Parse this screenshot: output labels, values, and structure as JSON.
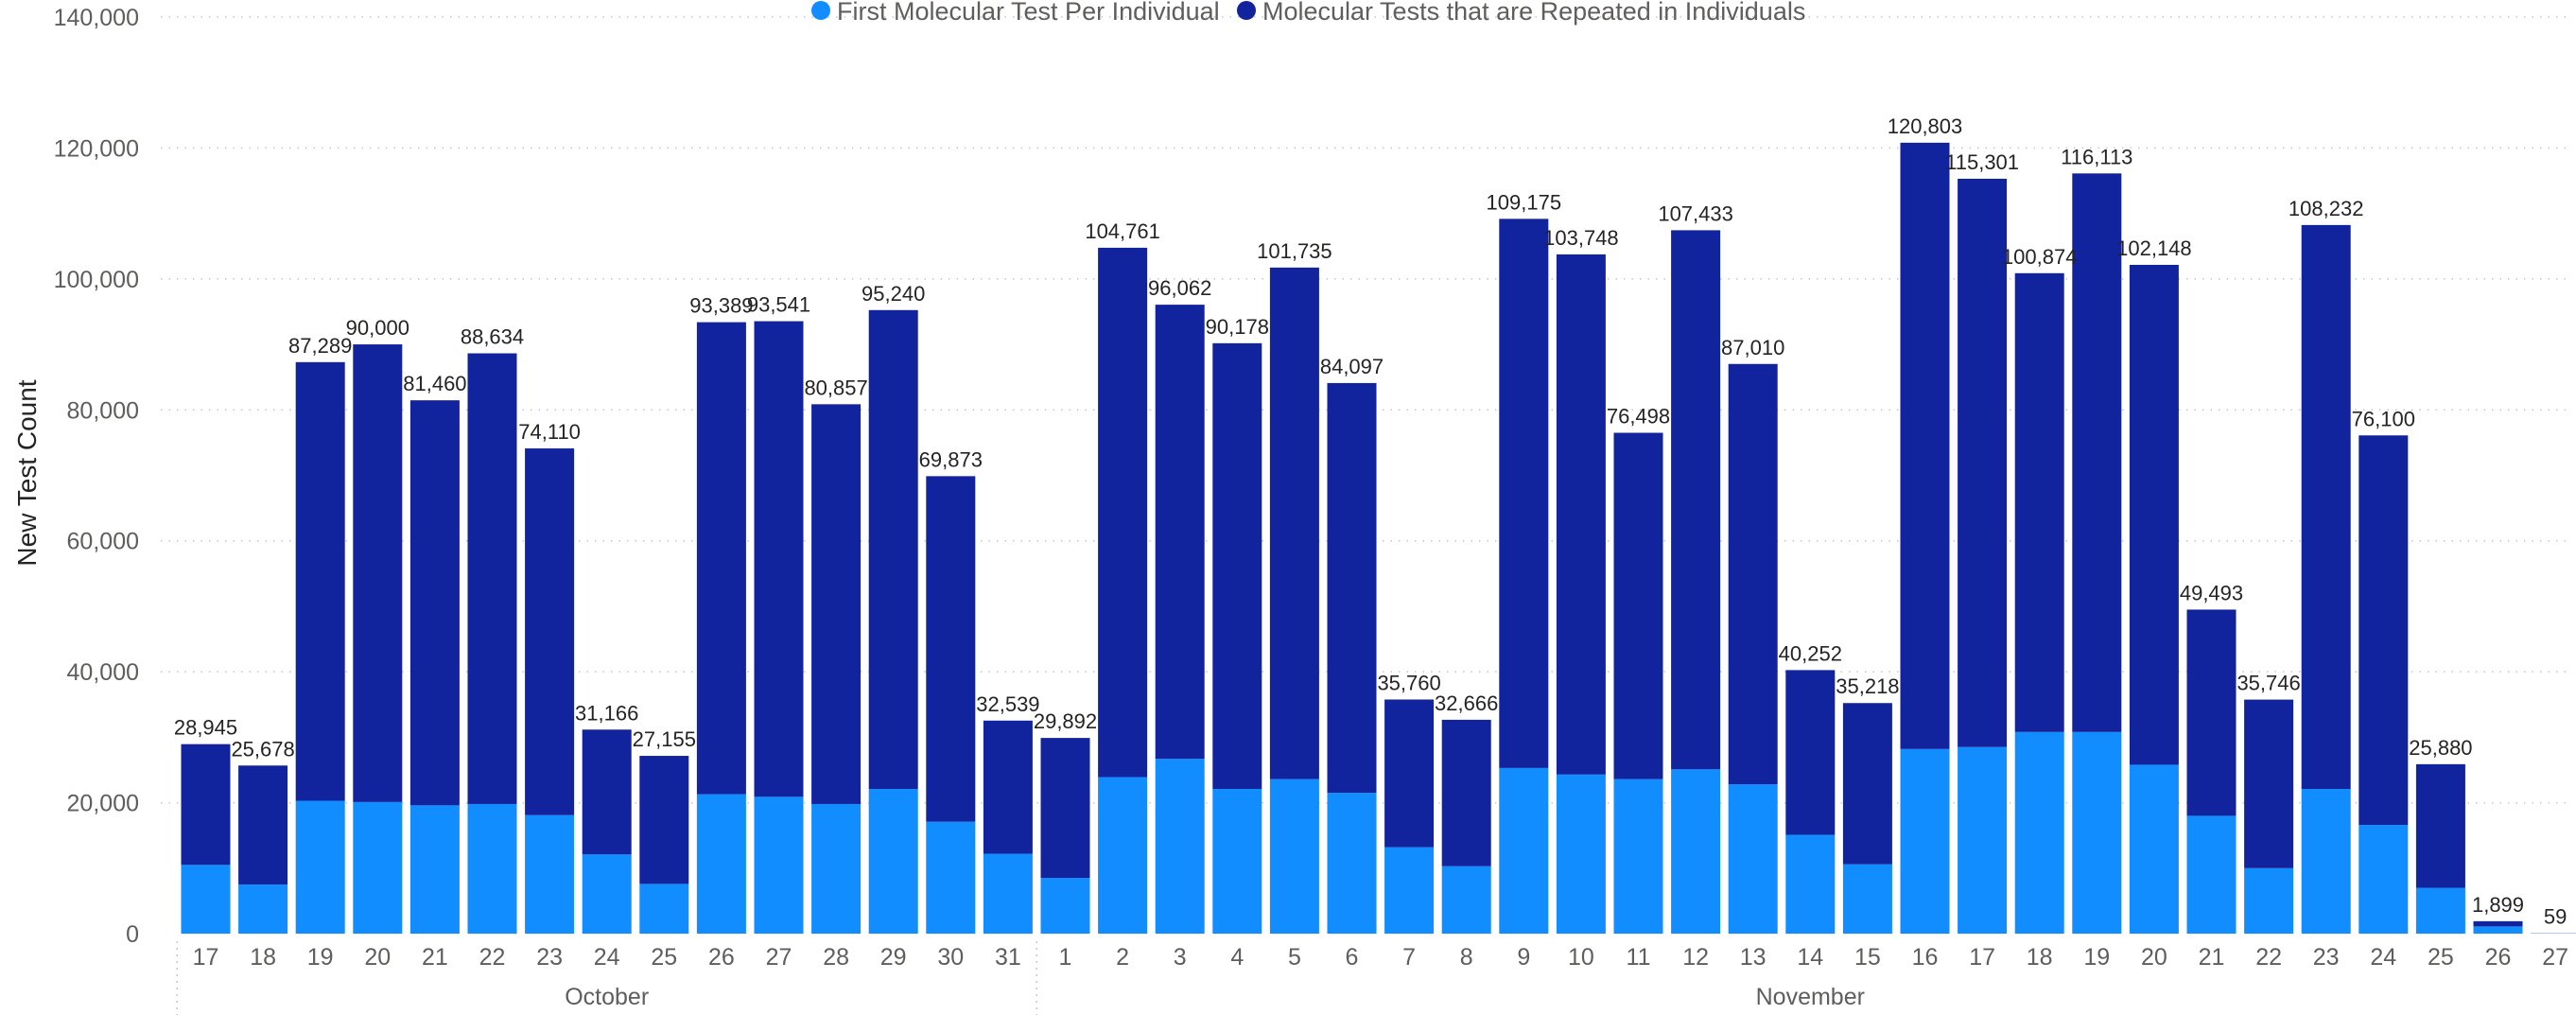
{
  "chart_data": {
    "type": "bar",
    "stacked": true,
    "ylabel": "New Test Count",
    "ylim": [
      0,
      140000
    ],
    "yticks": [
      0,
      20000,
      40000,
      60000,
      80000,
      100000,
      120000,
      140000
    ],
    "ytick_labels": [
      "0",
      "20,000",
      "40,000",
      "60,000",
      "80,000",
      "100,000",
      "120,000",
      "140,000"
    ],
    "grid": true,
    "legend_position": "top-center",
    "categories": [
      "17",
      "18",
      "19",
      "20",
      "21",
      "22",
      "23",
      "24",
      "25",
      "26",
      "27",
      "28",
      "29",
      "30",
      "31",
      "1",
      "2",
      "3",
      "4",
      "5",
      "6",
      "7",
      "8",
      "9",
      "10",
      "11",
      "12",
      "13",
      "14",
      "15",
      "16",
      "17",
      "18",
      "19",
      "20",
      "21",
      "22",
      "23",
      "24",
      "25",
      "26",
      "27"
    ],
    "month_groups": [
      {
        "label": "October",
        "count": 15
      },
      {
        "label": "November",
        "count": 27
      }
    ],
    "series": [
      {
        "name": "First Molecular Test Per Individual",
        "color": "#118dff",
        "values": [
          10500,
          7500,
          20300,
          20100,
          19600,
          19800,
          18100,
          12100,
          7600,
          21300,
          20900,
          19800,
          22100,
          17100,
          12200,
          8500,
          23900,
          26700,
          22100,
          23600,
          21500,
          13200,
          10300,
          25300,
          24300,
          23600,
          25100,
          22800,
          15100,
          10600,
          28200,
          28500,
          30800,
          30800,
          25800,
          18000,
          10000,
          22100,
          16600,
          7000,
          1100,
          35
        ]
      },
      {
        "name": "Molecular Tests that are Repeated in Individuals",
        "color": "#12239e",
        "values": [
          18445,
          18178,
          66989,
          69900,
          61860,
          68834,
          56010,
          19066,
          19555,
          72089,
          72641,
          61057,
          73140,
          52773,
          20339,
          21392,
          80861,
          69362,
          68078,
          78135,
          62597,
          22560,
          22366,
          83875,
          79448,
          52898,
          82333,
          64210,
          25152,
          24618,
          92603,
          86801,
          70074,
          85313,
          76348,
          31493,
          25746,
          86132,
          59500,
          18880,
          799,
          24
        ]
      }
    ],
    "totals": [
      28945,
      25678,
      87289,
      90000,
      81460,
      88634,
      74110,
      31166,
      27155,
      93389,
      93541,
      80857,
      95240,
      69873,
      32539,
      29892,
      104761,
      96062,
      90178,
      101735,
      84097,
      35760,
      32666,
      109175,
      103748,
      76498,
      107433,
      87010,
      40252,
      35218,
      120803,
      115301,
      100874,
      116113,
      102148,
      49493,
      35746,
      108232,
      76100,
      25880,
      1899,
      59
    ],
    "total_labels": [
      "28,945",
      "25,678",
      "87,289",
      "90,000",
      "81,460",
      "88,634",
      "74,110",
      "31,166",
      "27,155",
      "93,389",
      "93,541",
      "80,857",
      "95,240",
      "69,873",
      "32,539",
      "29,892",
      "104,761",
      "96,062",
      "90,178",
      "101,735",
      "84,097",
      "35,760",
      "32,666",
      "109,175",
      "103,748",
      "76,498",
      "107,433",
      "87,010",
      "40,252",
      "35,218",
      "120,803",
      "115,301",
      "100,874",
      "116,113",
      "102,148",
      "49,493",
      "35,746",
      "108,232",
      "76,100",
      "25,880",
      "1,899",
      "59"
    ]
  }
}
